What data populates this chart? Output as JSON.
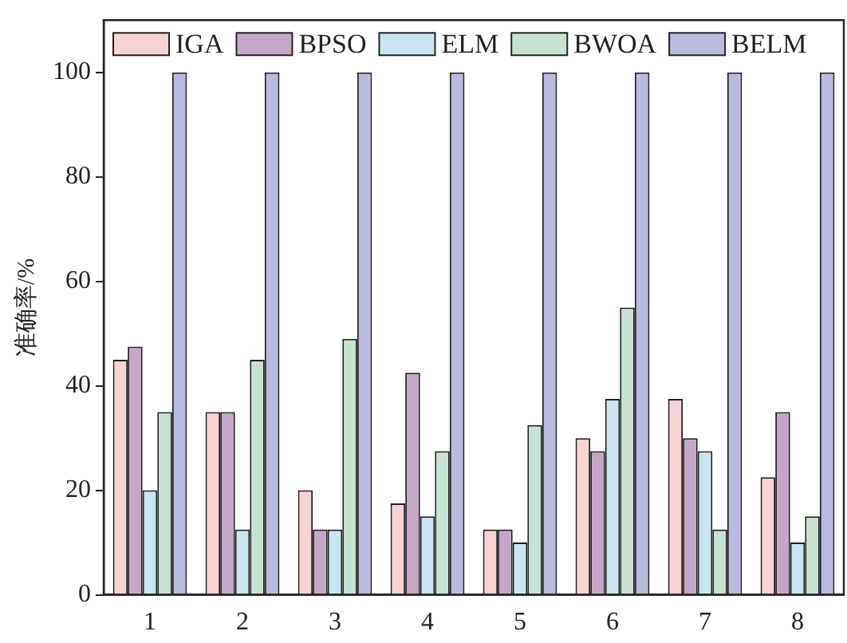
{
  "chart_data": {
    "type": "bar",
    "ylabel": "准确率/%",
    "categories": [
      "1",
      "2",
      "3",
      "4",
      "5",
      "6",
      "7",
      "8"
    ],
    "series": [
      {
        "name": "IGA",
        "color": "#f8d3d3",
        "values": [
          45,
          35,
          20,
          17.5,
          12.5,
          30,
          37.5,
          22.5
        ]
      },
      {
        "name": "BPSO",
        "color": "#c4a7c7",
        "values": [
          47.5,
          35,
          12.5,
          42.5,
          12.5,
          27.5,
          30,
          35
        ]
      },
      {
        "name": "ELM",
        "color": "#c9e6f0",
        "values": [
          20,
          12.5,
          12.5,
          15,
          10,
          37.5,
          27.5,
          10
        ]
      },
      {
        "name": "BWOA",
        "color": "#c8e2d1",
        "values": [
          35,
          45,
          49,
          27.5,
          32.5,
          55,
          12.5,
          15
        ]
      },
      {
        "name": "BELM",
        "color": "#b9bade",
        "values": [
          100,
          100,
          100,
          100,
          100,
          100,
          100,
          100
        ]
      }
    ],
    "ylim": [
      0,
      110
    ],
    "yticks": [
      0,
      20,
      40,
      60,
      80,
      100
    ],
    "grid": false,
    "legend": "top"
  }
}
